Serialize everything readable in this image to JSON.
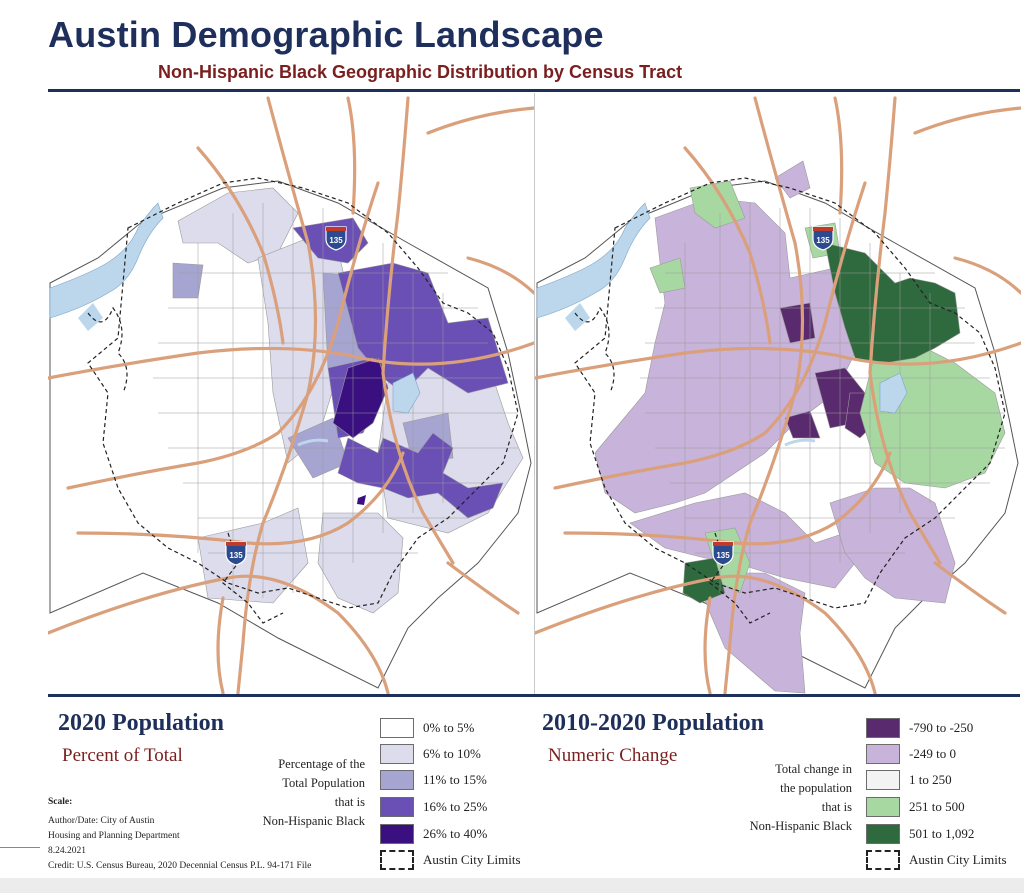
{
  "header": {
    "title": "Austin Demographic Landscape",
    "subtitle": "Non-Hispanic Black Geographic Distribution by Census Tract"
  },
  "highway_shield": {
    "label": "135"
  },
  "left_panel": {
    "title": "2020 Population",
    "subtitle": "Percent of Total",
    "description": [
      "Percentage of the",
      "Total Population",
      "that is",
      "Non-Hispanic Black"
    ],
    "legend": [
      {
        "label": "0% to 5%",
        "color": "#ffffff"
      },
      {
        "label": "6% to 10%",
        "color": "#dcdcec"
      },
      {
        "label": "11% to 15%",
        "color": "#a6a4d1"
      },
      {
        "label": "16% to 25%",
        "color": "#6a4fb4"
      },
      {
        "label": "26% to 40%",
        "color": "#3a0f80"
      },
      {
        "label": "Austin City Limits",
        "color": "dashed"
      }
    ]
  },
  "right_panel": {
    "title": "2010-2020 Population",
    "subtitle": "Numeric Change",
    "description": [
      "Total change in",
      "the population",
      "that is",
      "Non-Hispanic Black"
    ],
    "legend": [
      {
        "label": "-790 to -250",
        "color": "#5a2a6e"
      },
      {
        "label": "-249 to 0",
        "color": "#c8b3db"
      },
      {
        "label": "1 to 250",
        "color": "#f3f3f3"
      },
      {
        "label": "251 to 500",
        "color": "#a8d8a2"
      },
      {
        "label": "501 to 1,092",
        "color": "#2f6a3f"
      },
      {
        "label": "Austin City Limits",
        "color": "dashed"
      }
    ]
  },
  "credits": {
    "scale_label": "Scale:",
    "author_line1": "Author/Date: City of Austin",
    "author_line2": "Housing and Planning Department",
    "date": "8.24.2021",
    "source": "Credit: U.S. Census Bureau, 2020 Decennial Census P.L. 94-171 File"
  },
  "colors": {
    "navy": "#1f2f5c",
    "maroon": "#7a1e1e",
    "road": "#d9a07b",
    "water": "#bcd7ec",
    "tract_line": "#9a9a9a",
    "boundary": "#222222",
    "outline": "#555555"
  }
}
